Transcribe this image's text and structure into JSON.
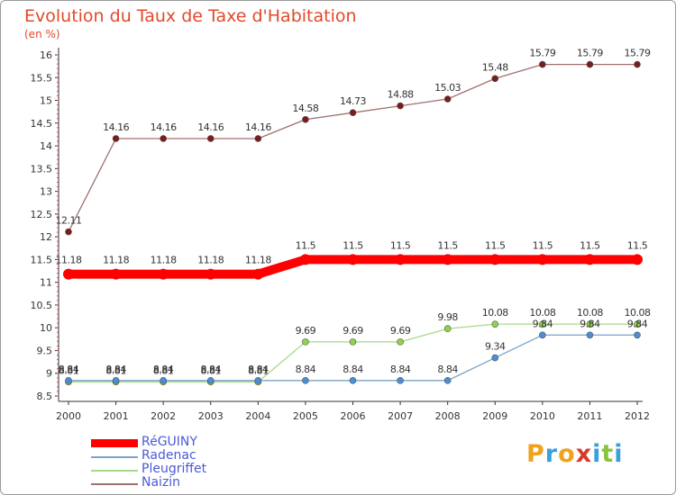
{
  "title": "Evolution du Taux de Taxe d'Habitation",
  "unit_label": "(en %)",
  "logo": {
    "letters": [
      "P",
      "r",
      "o",
      "x",
      "i",
      "t",
      "i"
    ],
    "colors": [
      "#f0a21c",
      "#3aa0dc",
      "#f0a21c",
      "#d83a2a",
      "#3aa0dc",
      "#8ac33a",
      "#3aa0dc"
    ]
  },
  "chart_data": {
    "type": "line",
    "title": "Evolution du Taux de Taxe d'Habitation",
    "ylabel": "(en %)",
    "xlabel": "",
    "x": [
      "2000",
      "2001",
      "2002",
      "2003",
      "2004",
      "2005",
      "2006",
      "2007",
      "2008",
      "2009",
      "2010",
      "2011",
      "2012"
    ],
    "ylim": [
      8.5,
      16
    ],
    "yticks": [
      "8.5",
      "9",
      "9.5",
      "10",
      "10.5",
      "11",
      "11.5",
      "12",
      "12.5",
      "13",
      "13.5",
      "14",
      "14.5",
      "15",
      "15.5",
      "16"
    ],
    "grid": false,
    "legend_position": "bottom-left",
    "series": [
      {
        "name": "Naizin",
        "color": "#7a1c1c",
        "line_color": "#a07070",
        "values": [
          12.11,
          14.16,
          14.16,
          14.16,
          14.16,
          14.58,
          14.73,
          14.88,
          15.03,
          15.48,
          15.79,
          15.79,
          15.79
        ],
        "labels": [
          "12.11",
          "14.16",
          "14.16",
          "14.16",
          "14.16",
          "14.58",
          "14.73",
          "14.88",
          "15.03",
          "15.48",
          "15.79",
          "15.79",
          "15.79"
        ]
      },
      {
        "name": "Pleugriffet",
        "color": "#8ed44a",
        "line_color": "#a8d88a",
        "values": [
          8.81,
          8.81,
          8.81,
          8.81,
          8.81,
          9.69,
          9.69,
          9.69,
          9.98,
          10.08,
          10.08,
          10.08,
          10.08
        ],
        "labels": [
          "8.81",
          "8.81",
          "8.81",
          "8.81",
          "8.81",
          "9.69",
          "9.69",
          "9.69",
          "9.98",
          "10.08",
          "10.08",
          "10.08",
          "10.08"
        ]
      },
      {
        "name": "Radenac",
        "color": "#4a8ed4",
        "line_color": "#7aa4c8",
        "values": [
          8.84,
          8.84,
          8.84,
          8.84,
          8.84,
          8.84,
          8.84,
          8.84,
          8.84,
          9.34,
          9.84,
          9.84,
          9.84
        ],
        "labels": [
          "8.84",
          "8.84",
          "8.84",
          "8.84",
          "8.84",
          "8.84",
          "8.84",
          "8.84",
          "8.84",
          "9.34",
          "9.84",
          "9.84",
          "9.84"
        ]
      },
      {
        "name": "RéGUINY",
        "color": "#ff0000",
        "line_color": "#ff0000",
        "values": [
          11.18,
          11.18,
          11.18,
          11.18,
          11.18,
          11.5,
          11.5,
          11.5,
          11.5,
          11.5,
          11.5,
          11.5,
          11.5
        ],
        "labels": [
          "11.18",
          "11.18",
          "11.18",
          "11.18",
          "11.18",
          "11.5",
          "11.5",
          "11.5",
          "11.5",
          "11.5",
          "11.5",
          "11.5",
          "11.5"
        ]
      }
    ],
    "legend": [
      "RéGUINY",
      "Radenac",
      "Pleugriffet",
      "Naizin"
    ]
  }
}
